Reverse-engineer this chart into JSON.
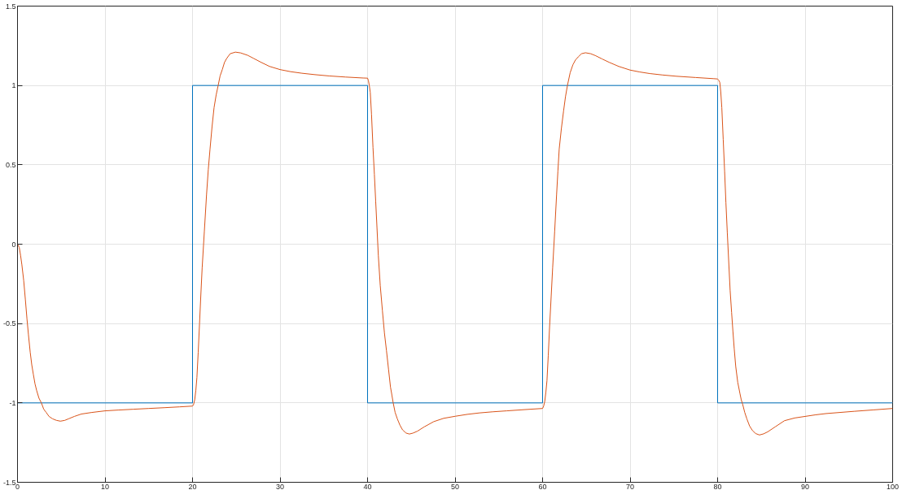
{
  "chart_data": {
    "type": "line",
    "xlim": [
      0,
      100
    ],
    "ylim": [
      -1.5,
      1.5
    ],
    "xticks": [
      0,
      10,
      20,
      30,
      40,
      50,
      60,
      70,
      80,
      90,
      100
    ],
    "yticks": [
      -1.5,
      -1,
      -0.5,
      0,
      0.5,
      1,
      1.5
    ],
    "grid": true,
    "series": [
      {
        "type": "step",
        "color": "#0072bd",
        "x": [
          0,
          20,
          40,
          60,
          80,
          100
        ],
        "values": [
          -1,
          1,
          -1,
          1,
          -1,
          -1
        ]
      },
      {
        "type": "line",
        "color": "#d95319",
        "x": [
          0,
          0.2,
          0.35,
          0.5,
          0.71,
          0.9,
          1.08,
          1.25,
          1.45,
          1.63,
          1.81,
          2.0,
          2.18,
          2.45,
          2.73,
          3.0,
          3.28,
          3.6,
          4.0,
          4.45,
          4.9,
          5.4,
          5.84,
          6.5,
          7.3,
          8.5,
          10,
          11.5,
          13.2,
          15,
          16.8,
          18.5,
          20,
          20.12,
          20.25,
          20.38,
          20.5,
          20.65,
          20.8,
          20.95,
          21.1,
          21.35,
          21.6,
          21.8,
          22.0,
          22.23,
          22.46,
          22.7,
          22.93,
          23.15,
          23.4,
          23.65,
          23.9,
          24.3,
          24.9,
          25.5,
          26.3,
          27.0,
          27.86,
          28.8,
          30,
          31.2,
          32.5,
          34,
          35.6,
          37.5,
          39.5,
          40,
          40.1,
          40.2,
          40.31,
          40.45,
          40.62,
          40.78,
          40.93,
          41.08,
          41.23,
          41.45,
          41.7,
          41.93,
          42.16,
          42.4,
          42.62,
          42.78,
          42.93,
          43.15,
          43.4,
          43.7,
          44.0,
          44.4,
          44.78,
          45.2,
          45.7,
          46.5,
          47.56,
          48.7,
          50.03,
          51.4,
          52.8,
          54.3,
          55.9,
          58,
          60,
          60.12,
          60.25,
          60.38,
          60.5,
          60.65,
          60.8,
          60.98,
          61.15,
          61.38,
          61.6,
          61.75,
          61.9,
          62.15,
          62.4,
          62.62,
          62.84,
          63.15,
          63.46,
          63.75,
          64.07,
          64.45,
          64.9,
          65.5,
          66.08,
          66.8,
          67.6,
          68.7,
          70,
          71.1,
          72.25,
          73.7,
          75.3,
          77.5,
          79.5,
          80,
          80.1,
          80.25,
          80.36,
          80.48,
          80.64,
          80.8,
          80.95,
          81.11,
          81.27,
          81.43,
          81.6,
          81.75,
          81.9,
          82.07,
          82.3,
          82.55,
          82.7,
          82.87,
          83.1,
          83.34,
          83.65,
          83.98,
          84.35,
          84.78,
          85.25,
          85.73,
          86.6,
          87.64,
          88.8,
          90,
          91.2,
          92.42,
          94,
          95.6,
          97.8,
          100
        ],
        "values": [
          0,
          -0.02,
          -0.07,
          -0.13,
          -0.23,
          -0.35,
          -0.47,
          -0.57,
          -0.68,
          -0.76,
          -0.82,
          -0.88,
          -0.92,
          -0.97,
          -1.0,
          -1.04,
          -1.06,
          -1.085,
          -1.1,
          -1.11,
          -1.115,
          -1.11,
          -1.1,
          -1.085,
          -1.07,
          -1.06,
          -1.05,
          -1.045,
          -1.04,
          -1.035,
          -1.03,
          -1.025,
          -1.02,
          -1.01,
          -0.98,
          -0.92,
          -0.84,
          -0.68,
          -0.5,
          -0.32,
          -0.15,
          0.08,
          0.31,
          0.47,
          0.6,
          0.74,
          0.86,
          0.94,
          1.0,
          1.06,
          1.1,
          1.145,
          1.17,
          1.2,
          1.21,
          1.205,
          1.19,
          1.17,
          1.145,
          1.12,
          1.1,
          1.087,
          1.077,
          1.068,
          1.06,
          1.053,
          1.047,
          1.046,
          1.03,
          1.0,
          0.957,
          0.82,
          0.61,
          0.44,
          0.27,
          0.1,
          -0.07,
          -0.26,
          -0.42,
          -0.56,
          -0.67,
          -0.79,
          -0.9,
          -0.95,
          -1.0,
          -1.06,
          -1.1,
          -1.14,
          -1.17,
          -1.19,
          -1.196,
          -1.19,
          -1.178,
          -1.15,
          -1.118,
          -1.097,
          -1.084,
          -1.072,
          -1.063,
          -1.056,
          -1.05,
          -1.042,
          -1.035,
          -1.02,
          -0.99,
          -0.93,
          -0.86,
          -0.7,
          -0.52,
          -0.33,
          -0.15,
          0.08,
          0.31,
          0.46,
          0.6,
          0.73,
          0.84,
          0.93,
          1.0,
          1.08,
          1.13,
          1.16,
          1.18,
          1.2,
          1.206,
          1.2,
          1.187,
          1.167,
          1.146,
          1.12,
          1.097,
          1.085,
          1.075,
          1.066,
          1.058,
          1.05,
          1.043,
          1.041,
          1.035,
          1.02,
          0.96,
          0.86,
          0.66,
          0.46,
          0.26,
          0.07,
          -0.11,
          -0.29,
          -0.43,
          -0.55,
          -0.66,
          -0.77,
          -0.87,
          -0.94,
          -0.98,
          -1.01,
          -1.06,
          -1.1,
          -1.145,
          -1.174,
          -1.193,
          -1.202,
          -1.195,
          -1.182,
          -1.15,
          -1.112,
          -1.095,
          -1.085,
          -1.075,
          -1.067,
          -1.06,
          -1.053,
          -1.044,
          -1.035
        ]
      }
    ]
  }
}
